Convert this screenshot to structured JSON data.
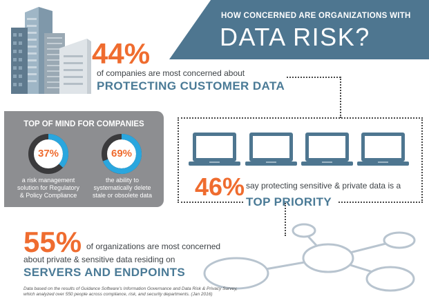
{
  "header": {
    "line1": "HOW CONCERNED ARE ORGANIZATIONS WITH",
    "line2": "DATA RISK?"
  },
  "stat_customer": {
    "percent": "44%",
    "text": "of companies are most concerned about",
    "highlight": "PROTECTING CUSTOMER DATA"
  },
  "top_of_mind": {
    "title": "TOP OF MIND FOR COMPANIES",
    "items": [
      {
        "percent": "37%",
        "fraction": 0.37,
        "desc_lines": [
          "a risk management",
          "solution for Regulatory",
          "& Policy Compliance"
        ]
      },
      {
        "percent": "69%",
        "fraction": 0.69,
        "desc_lines": [
          "the ability to",
          "systematically delete",
          "stale or obsolete data"
        ]
      }
    ]
  },
  "stat_priority": {
    "percent": "46%",
    "text": "say protecting sensitive & private data is a",
    "highlight": "TOP PRIORITY"
  },
  "stat_servers": {
    "percent": "55%",
    "text_line1": "of organizations are most concerned",
    "text_line2": "about private & sensitive data residing on",
    "highlight": "SERVERS AND ENDPOINTS"
  },
  "footnote": {
    "line1": "Data based on the results of Guidance Software's Information Governance and Data Risk & Privacy Survey,",
    "line2": "which analyzed over 550 people across compliance, risk, and security departments. (Jan 2016)"
  },
  "colors": {
    "accent_orange": "#ef6c2f",
    "brand_blue": "#4e7690",
    "ring_blue": "#2aa6de",
    "gray_panel": "#8d8e91"
  }
}
